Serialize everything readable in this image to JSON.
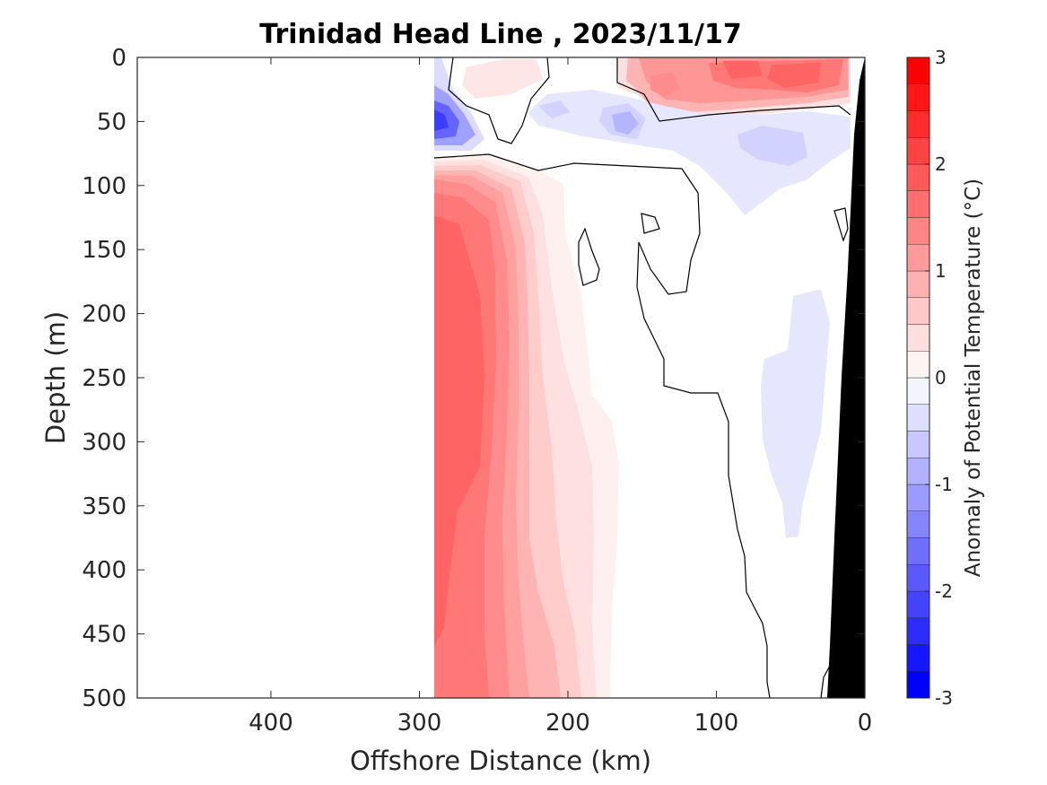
{
  "chart_data": {
    "type": "contourf",
    "title": "Trinidad Head Line , 2023/11/17",
    "xlabel": "Offshore Distance (km)",
    "ylabel": "Depth (m)",
    "xlim": [
      490,
      0
    ],
    "ylim": [
      0,
      500
    ],
    "x_ticks": [
      "400",
      "300",
      "200",
      "100",
      "0"
    ],
    "x_tick_values": [
      400,
      300,
      200,
      100,
      0
    ],
    "y_ticks": [
      "0",
      "50",
      "100",
      "150",
      "200",
      "250",
      "300",
      "350",
      "400",
      "450",
      "500"
    ],
    "y_tick_values": [
      0,
      50,
      100,
      150,
      200,
      250,
      300,
      350,
      400,
      450,
      500
    ],
    "x_reversed": true,
    "y_reversed": true,
    "data_extent_km": [
      0,
      290
    ],
    "colorbar": {
      "label": "Anomaly of Potential Temperature (°C)",
      "range": [
        -3,
        3
      ],
      "ticks": [
        "3",
        "2",
        "1",
        "0",
        "-1",
        "-2",
        "-3"
      ],
      "tick_values": [
        3,
        2,
        1,
        0,
        -1,
        -2,
        -3
      ],
      "level_step": 0.25,
      "color_min": "#0000ff",
      "color_zero": "#ffffff",
      "color_max": "#ff0000"
    },
    "regions": [
      {
        "name": "deep warm core",
        "x_km": [
          180,
          290
        ],
        "depth_m": [
          80,
          500
        ],
        "max_anomaly": 2.0
      },
      {
        "name": "surface warm patch near shore",
        "x_km": [
          10,
          190
        ],
        "depth_m": [
          0,
          45
        ],
        "max_anomaly": 2.25
      },
      {
        "name": "offshore near-surface warm patch",
        "x_km": [
          225,
          270
        ],
        "depth_m": [
          0,
          35
        ],
        "max_anomaly": 0.5
      },
      {
        "name": "subsurface cold patch",
        "x_km": [
          100,
          290
        ],
        "depth_m": [
          30,
          85
        ],
        "min_anomaly": -2.0
      },
      {
        "name": "nearshore deep cold anomaly",
        "x_km": [
          40,
          85
        ],
        "depth_m": [
          180,
          370
        ],
        "min_anomaly": -0.5
      }
    ],
    "bathymetry_color": "#000000"
  }
}
